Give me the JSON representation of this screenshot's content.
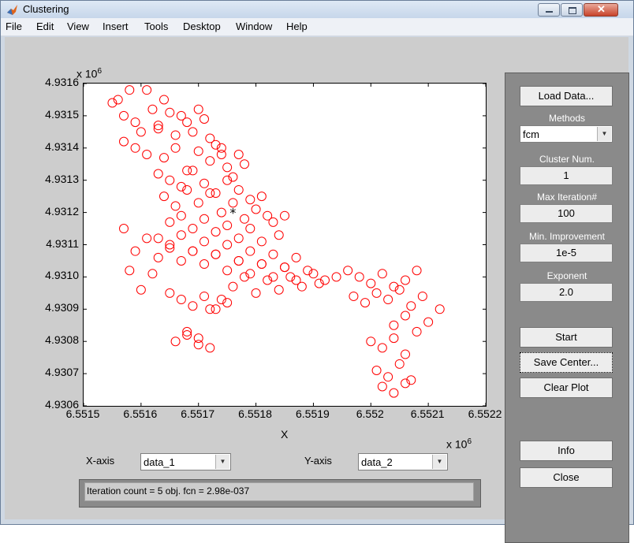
{
  "window": {
    "title": "Clustering"
  },
  "menu": [
    "File",
    "Edit",
    "View",
    "Insert",
    "Tools",
    "Desktop",
    "Window",
    "Help"
  ],
  "axes": {
    "y_ticks": [
      "4.9316",
      "4.9315",
      "4.9314",
      "4.9313",
      "4.9312",
      "4.9311",
      "4.9310",
      "4.9309",
      "4.9308",
      "4.9307",
      "4.9306"
    ],
    "x_ticks": [
      "6.5515",
      "6.5516",
      "6.5517",
      "6.5518",
      "6.5519",
      "6.552",
      "6.5521",
      "6.5522"
    ],
    "y_exponent": "x 10",
    "y_exponent_power": "6",
    "x_exponent": "x 10",
    "x_exponent_power": "6",
    "xlabel": "X"
  },
  "chart_data": {
    "type": "scatter",
    "xlabel": "X",
    "xlim": [
      6.5515,
      6.5522
    ],
    "ylim": [
      4.9306,
      4.9316
    ],
    "scale": "x 10^6",
    "marker": "circle",
    "marker_color": "#ff0000",
    "center": {
      "x": 6.55176,
      "y": 4.9312,
      "marker": "*",
      "color": "#000000"
    },
    "series": [
      {
        "x": [
          6.55155,
          6.55156,
          6.55157,
          6.55158,
          6.55159,
          6.5516,
          6.55161,
          6.55162,
          6.55163,
          6.55157,
          6.55159,
          6.55161,
          6.55163,
          6.55164,
          6.55165,
          6.55166,
          6.55167,
          6.55168,
          6.55169,
          6.5517,
          6.55171,
          6.55172,
          6.55173,
          6.55174,
          6.55164,
          6.55166,
          6.55168,
          6.5517,
          6.55172,
          6.55174,
          6.55175,
          6.55176,
          6.55177,
          6.55178,
          6.55163,
          6.55165,
          6.55167,
          6.55169,
          6.55171,
          6.55173,
          6.55175,
          6.55177,
          6.55179,
          6.55164,
          6.55166,
          6.55168,
          6.5517,
          6.55172,
          6.55174,
          6.55176,
          6.55178,
          6.5518,
          6.55181,
          6.55182,
          6.55165,
          6.55167,
          6.55169,
          6.55171,
          6.55173,
          6.55175,
          6.55177,
          6.55179,
          6.55181,
          6.55183,
          6.55184,
          6.55185,
          6.55163,
          6.55165,
          6.55167,
          6.55169,
          6.55171,
          6.55173,
          6.55175,
          6.55177,
          6.55179,
          6.55181,
          6.55183,
          6.55185,
          6.55187,
          6.55157,
          6.55159,
          6.55161,
          6.55163,
          6.55165,
          6.55167,
          6.55169,
          6.55171,
          6.55173,
          6.55175,
          6.55177,
          6.55179,
          6.55181,
          6.55183,
          6.55185,
          6.55187,
          6.55189,
          6.55191,
          6.55158,
          6.5516,
          6.55162,
          6.55172,
          6.55174,
          6.55176,
          6.55178,
          6.5518,
          6.55182,
          6.55184,
          6.55186,
          6.55188,
          6.5519,
          6.55192,
          6.55194,
          6.55165,
          6.55167,
          6.55169,
          6.55171,
          6.55173,
          6.55175,
          6.55168,
          6.5517,
          6.55166,
          6.55168,
          6.5517,
          6.55172,
          6.55196,
          6.55198,
          6.552,
          6.55202,
          6.55204,
          6.55206,
          6.55208,
          6.55197,
          6.55199,
          6.55201,
          6.55203,
          6.55205,
          6.55207,
          6.55209,
          6.55204,
          6.55206,
          6.55208,
          6.5521,
          6.55212,
          6.552,
          6.55202,
          6.55204,
          6.55206,
          6.55201,
          6.55203,
          6.55205,
          6.55207,
          6.55202,
          6.55204,
          6.55206
        ],
        "y": [
          4.93154,
          4.93155,
          4.9315,
          4.93158,
          4.93148,
          4.93145,
          4.93158,
          4.93152,
          4.93147,
          4.93142,
          4.9314,
          4.93138,
          4.93146,
          4.93155,
          4.93151,
          4.93144,
          4.9315,
          4.93148,
          4.93145,
          4.93152,
          4.93149,
          4.93143,
          4.93141,
          4.93138,
          4.93137,
          4.9314,
          4.93133,
          4.93139,
          4.93136,
          4.9314,
          4.93134,
          4.93131,
          4.93138,
          4.93135,
          4.93132,
          4.9313,
          4.93128,
          4.93133,
          4.93129,
          4.93126,
          4.9313,
          4.93127,
          4.93124,
          4.93125,
          4.93122,
          4.93127,
          4.93123,
          4.93126,
          4.9312,
          4.93123,
          4.93118,
          4.93121,
          4.93125,
          4.93119,
          4.93117,
          4.93119,
          4.93115,
          4.93118,
          4.93114,
          4.93116,
          4.93112,
          4.93115,
          4.93111,
          4.93117,
          4.93113,
          4.93119,
          4.93112,
          4.9311,
          4.93113,
          4.93108,
          4.93111,
          4.93107,
          4.9311,
          4.93105,
          4.93108,
          4.93104,
          4.93107,
          4.93103,
          4.93106,
          4.93115,
          4.93108,
          4.93112,
          4.93106,
          4.93109,
          4.93105,
          4.93108,
          4.93104,
          4.93107,
          4.93102,
          4.93105,
          4.93101,
          4.93104,
          4.931,
          4.93103,
          4.93099,
          4.93102,
          4.93098,
          4.93102,
          4.93096,
          4.93101,
          4.9309,
          4.93093,
          4.93097,
          4.931,
          4.93095,
          4.93099,
          4.93096,
          4.931,
          4.93097,
          4.93101,
          4.93099,
          4.931,
          4.93095,
          4.93093,
          4.93091,
          4.93094,
          4.9309,
          4.93092,
          4.93083,
          4.93081,
          4.9308,
          4.93082,
          4.93079,
          4.93078,
          4.93102,
          4.931,
          4.93098,
          4.93101,
          4.93097,
          4.93099,
          4.93102,
          4.93094,
          4.93092,
          4.93095,
          4.93093,
          4.93096,
          4.93091,
          4.93094,
          4.93085,
          4.93088,
          4.93083,
          4.93086,
          4.9309,
          4.9308,
          4.93078,
          4.93081,
          4.93076,
          4.93071,
          4.93069,
          4.93073,
          4.93068,
          4.93066,
          4.93064,
          4.93067
        ]
      }
    ]
  },
  "controls": {
    "load_button": "Load Data...",
    "methods_label": "Methods",
    "methods_value": "fcm",
    "cluster_num_label": "Cluster Num.",
    "cluster_num_value": "1",
    "max_iter_label": "Max Iteration#",
    "max_iter_value": "100",
    "min_improve_label": "Min. Improvement",
    "min_improve_value": "1e-5",
    "exponent_label": "Exponent",
    "exponent_value": "2.0",
    "start_button": "Start",
    "save_center_button": "Save Center...",
    "clear_plot_button": "Clear Plot",
    "info_button": "Info",
    "close_button": "Close"
  },
  "bottom": {
    "x_axis_label": "X-axis",
    "x_axis_value": "data_1",
    "y_axis_label": "Y-axis",
    "y_axis_value": "data_2",
    "status_text": "Iteration count = 5 obj. fcn = 2.98e-037"
  },
  "colors": {
    "marker": "#ff0000",
    "center": "#000000",
    "panel": "#8a8a8a"
  }
}
